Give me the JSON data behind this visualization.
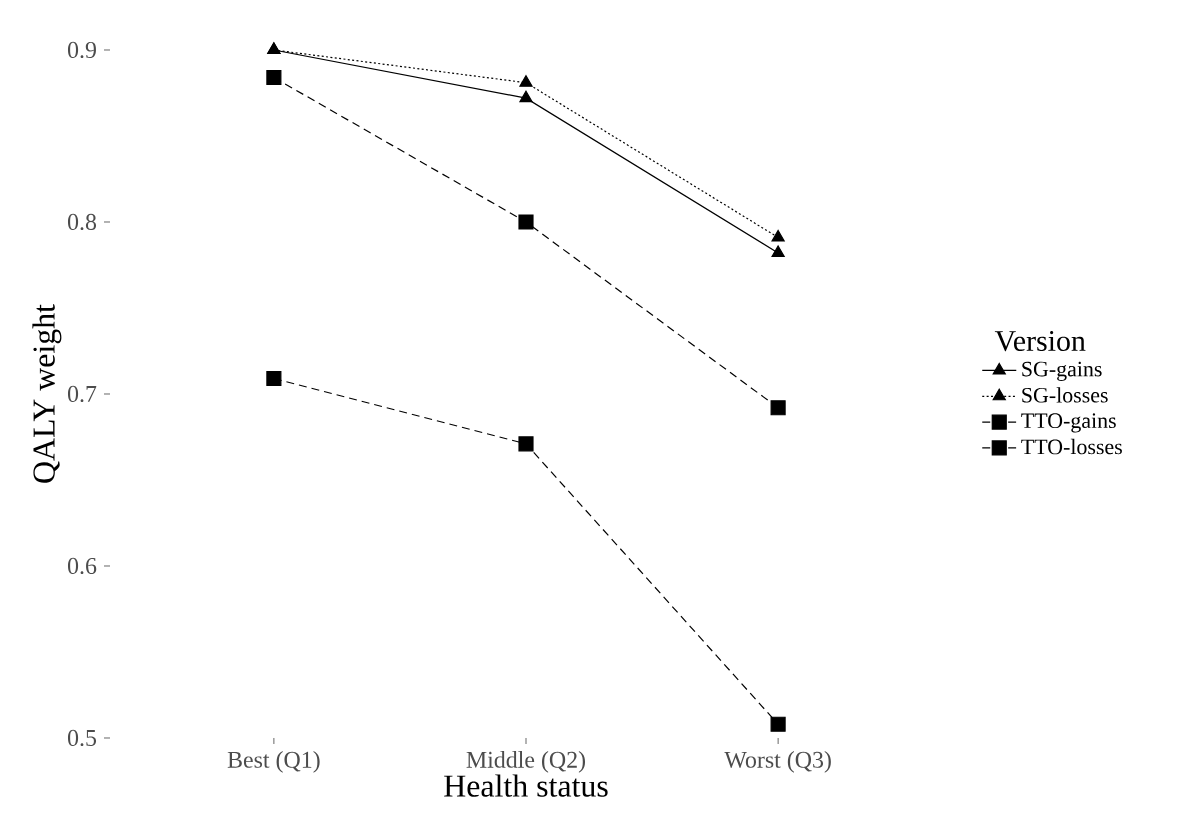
{
  "chart_data": {
    "type": "line",
    "xlabel": "Health status",
    "ylabel": "QALY weight",
    "legend_title": "Version",
    "categories": [
      "Best (Q1)",
      "Middle (Q2)",
      "Worst (Q3)"
    ],
    "series": [
      {
        "name": "SG-gains",
        "color": "#000000",
        "values": [
          0.9,
          0.872,
          0.782
        ],
        "marker": "triangle",
        "line_style": "solid"
      },
      {
        "name": "SG-losses",
        "color": "#000000",
        "values": [
          0.9,
          0.881,
          0.791
        ],
        "marker": "triangle",
        "line_style": "dotted"
      },
      {
        "name": "TTO-gains",
        "color": "#000000",
        "values": [
          0.709,
          0.671,
          0.508
        ],
        "marker": "square",
        "line_style": "dashed"
      },
      {
        "name": "TTO-losses",
        "color": "#000000",
        "values": [
          0.884,
          0.8,
          0.692
        ],
        "marker": "square",
        "line_style": "dashed"
      }
    ],
    "ylim": [
      0.5,
      0.9
    ],
    "yticks": [
      0.5,
      0.6,
      0.7,
      0.8,
      0.9
    ],
    "grid": false,
    "legend": "right"
  }
}
